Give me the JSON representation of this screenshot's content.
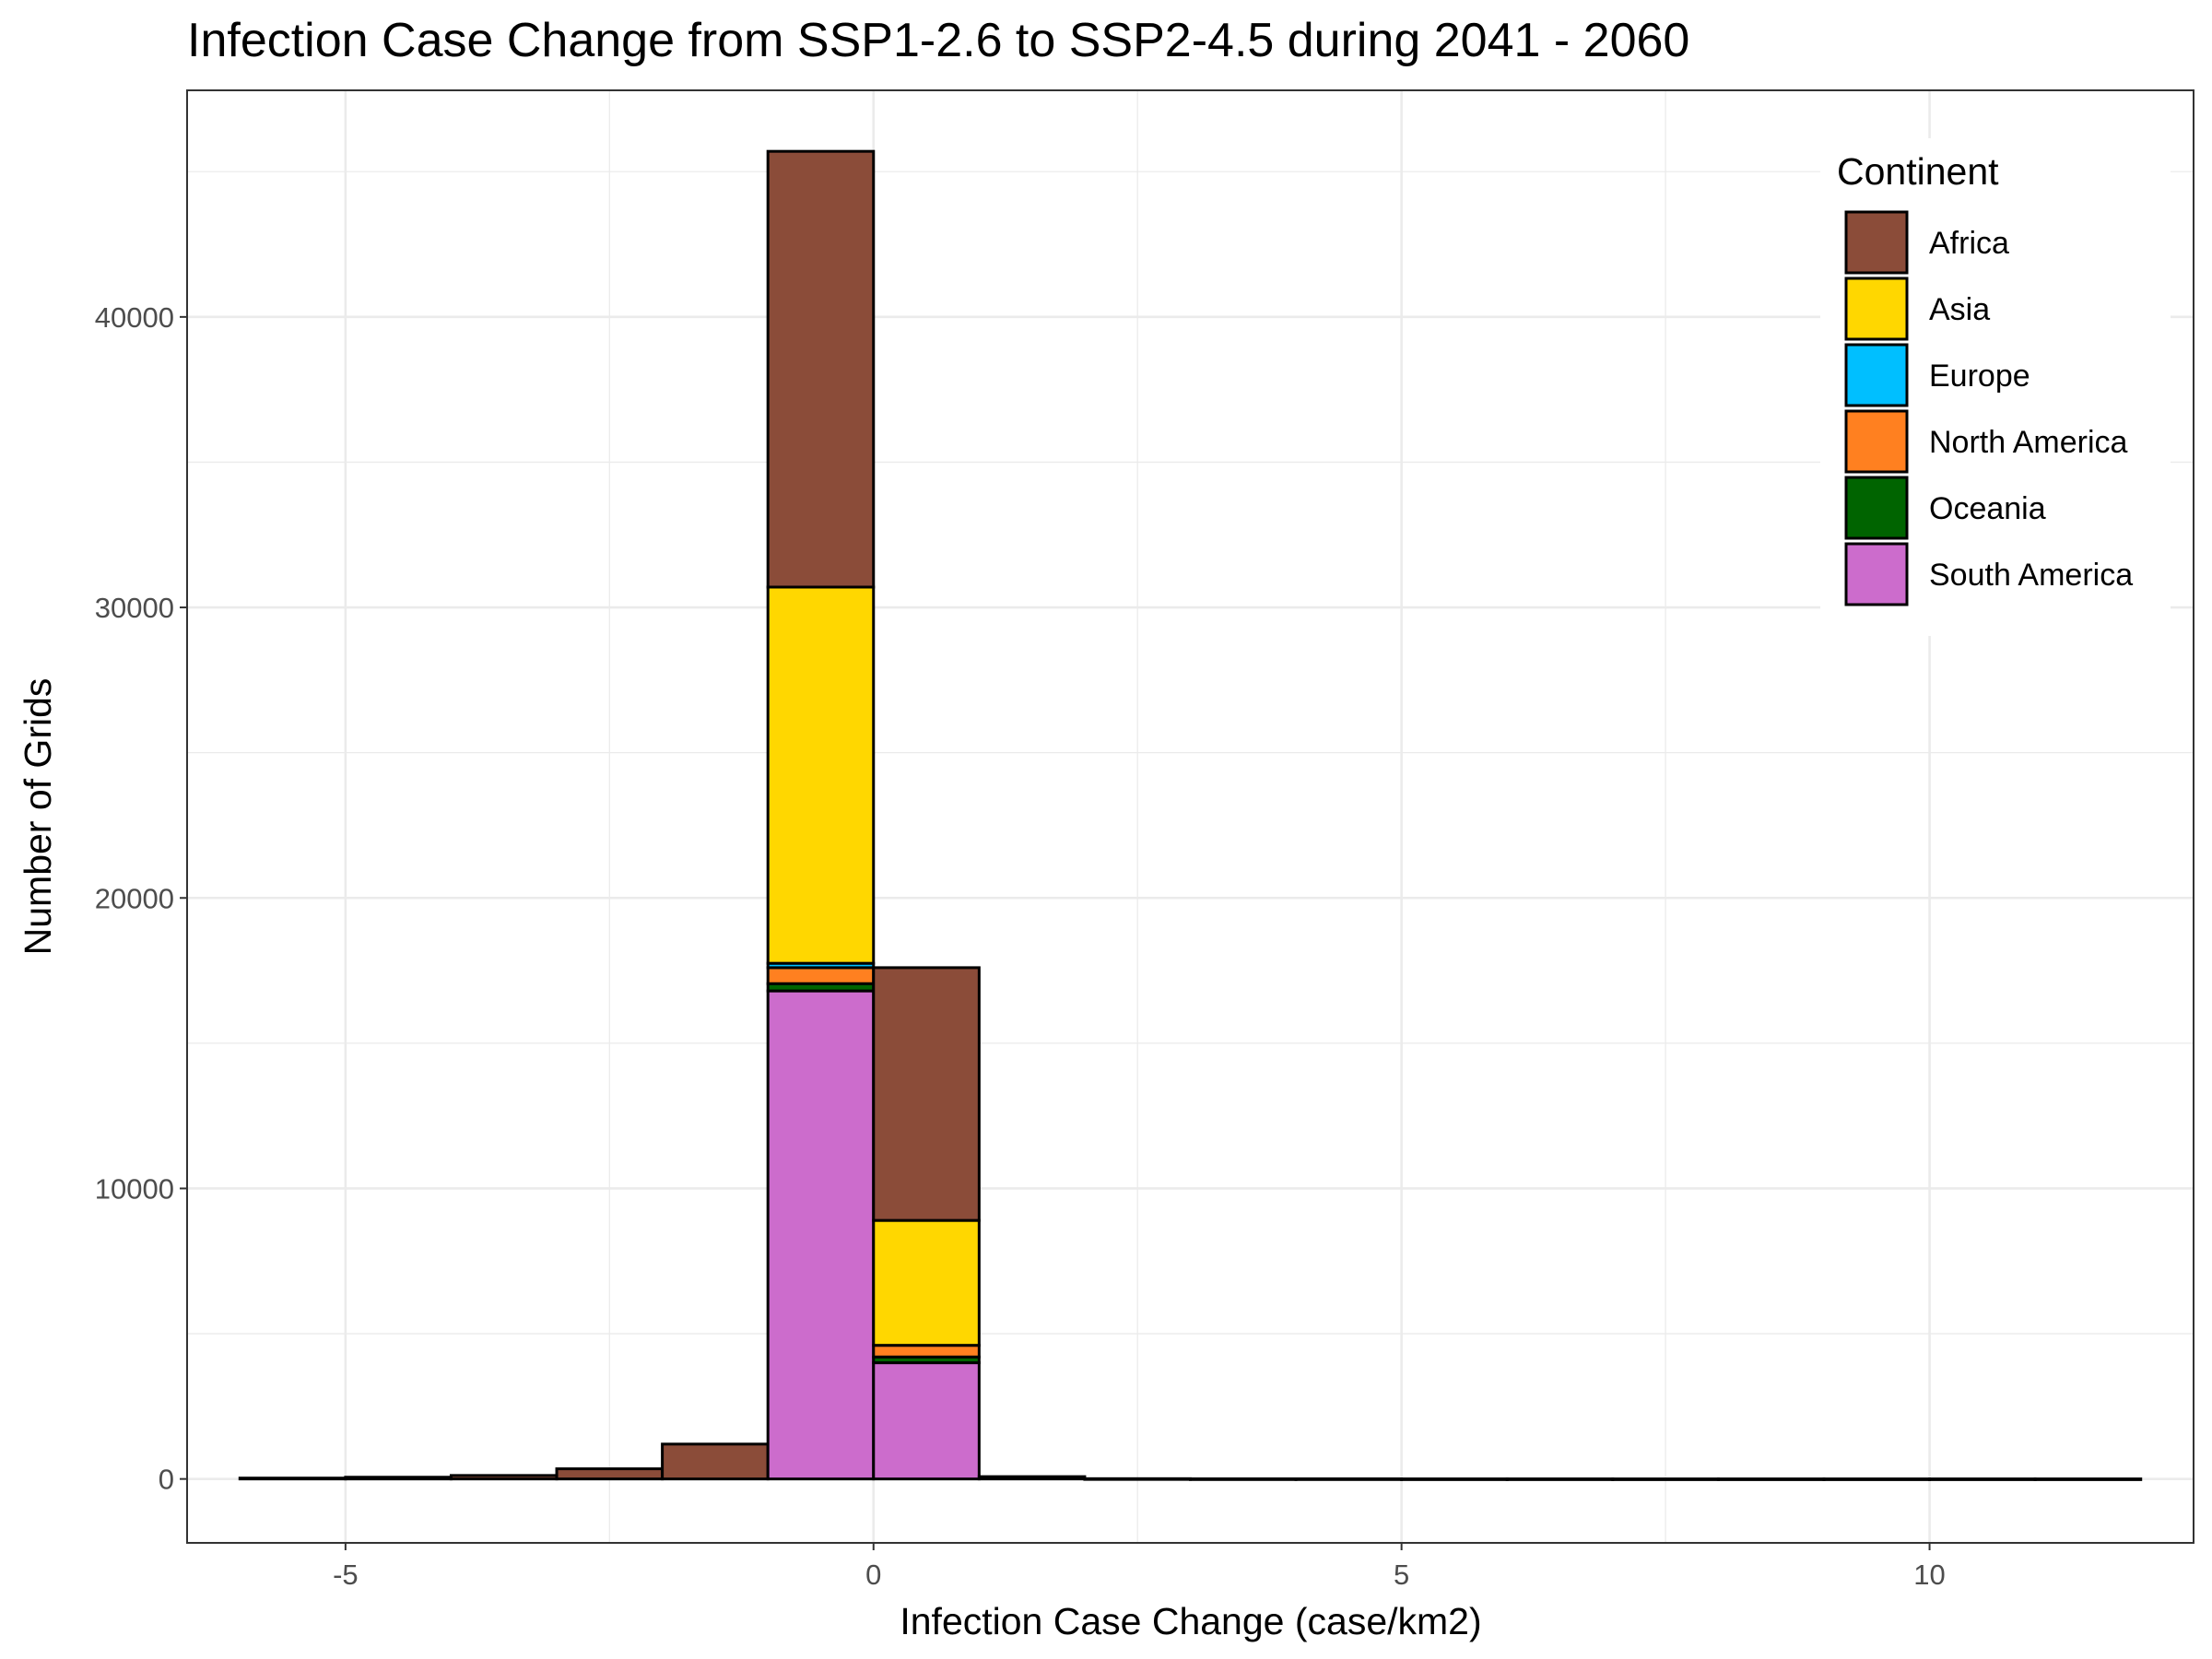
{
  "chart_data": {
    "type": "bar",
    "subtype": "stacked-histogram",
    "title": "Infection Case Change from SSP1-2.6 to SSP2-4.5 during 2041 - 2060",
    "xlabel": "Infection Case Change (case/km2)",
    "ylabel": "Number of Grids",
    "xlim": [
      -6.5,
      12.5
    ],
    "ylim": [
      -2200,
      47800
    ],
    "x_ticks": [
      -5,
      0,
      5,
      10
    ],
    "x_tick_labels": [
      "-5",
      "0",
      "5",
      "10"
    ],
    "y_ticks": [
      0,
      10000,
      20000,
      30000,
      40000
    ],
    "y_tick_labels": [
      "0",
      "10000",
      "20000",
      "30000",
      "40000"
    ],
    "grid": true,
    "legend": {
      "title": "Continent",
      "position": "top-right"
    },
    "bin_width": 1,
    "bins": [
      {
        "start": -6,
        "end": -5
      },
      {
        "start": -5,
        "end": -4
      },
      {
        "start": -4,
        "end": -3
      },
      {
        "start": -3,
        "end": -2
      },
      {
        "start": -2,
        "end": -1
      },
      {
        "start": -1,
        "end": 0
      },
      {
        "start": 0,
        "end": 1
      },
      {
        "start": 1,
        "end": 2
      },
      {
        "start": 2,
        "end": 3
      },
      {
        "start": 3,
        "end": 4
      },
      {
        "start": 4,
        "end": 5
      },
      {
        "start": 5,
        "end": 6
      },
      {
        "start": 6,
        "end": 7
      },
      {
        "start": 7,
        "end": 8
      },
      {
        "start": 8,
        "end": 9
      },
      {
        "start": 9,
        "end": 10
      },
      {
        "start": 10,
        "end": 11
      },
      {
        "start": 11,
        "end": 12
      }
    ],
    "series": [
      {
        "name": "South America",
        "color": "#CC6CCC",
        "values": [
          0,
          0,
          0,
          0,
          0,
          16800,
          4000,
          0,
          0,
          0,
          0,
          0,
          0,
          0,
          0,
          0,
          0,
          0
        ]
      },
      {
        "name": "Oceania",
        "color": "#006400",
        "values": [
          0,
          0,
          0,
          0,
          0,
          250,
          200,
          0,
          0,
          0,
          0,
          0,
          0,
          0,
          0,
          0,
          0,
          0
        ]
      },
      {
        "name": "North America",
        "color": "#FF8020",
        "values": [
          0,
          0,
          0,
          0,
          0,
          550,
          400,
          0,
          0,
          0,
          0,
          0,
          0,
          0,
          0,
          0,
          0,
          0
        ]
      },
      {
        "name": "Europe",
        "color": "#00BFFF",
        "values": [
          0,
          0,
          0,
          0,
          0,
          150,
          0,
          0,
          0,
          0,
          0,
          0,
          0,
          0,
          0,
          0,
          0,
          0
        ]
      },
      {
        "name": "Asia",
        "color": "#FFD700",
        "values": [
          0,
          0,
          0,
          0,
          0,
          12950,
          4300,
          0,
          0,
          0,
          0,
          0,
          0,
          0,
          0,
          0,
          0,
          0
        ]
      },
      {
        "name": "Africa",
        "color": "#8B4C39",
        "values": [
          30,
          60,
          120,
          350,
          1200,
          15000,
          8700,
          80,
          10,
          5,
          5,
          3,
          3,
          2,
          2,
          2,
          2,
          2
        ]
      }
    ],
    "legend_order": [
      "Africa",
      "Asia",
      "Europe",
      "North America",
      "Oceania",
      "South America"
    ]
  }
}
